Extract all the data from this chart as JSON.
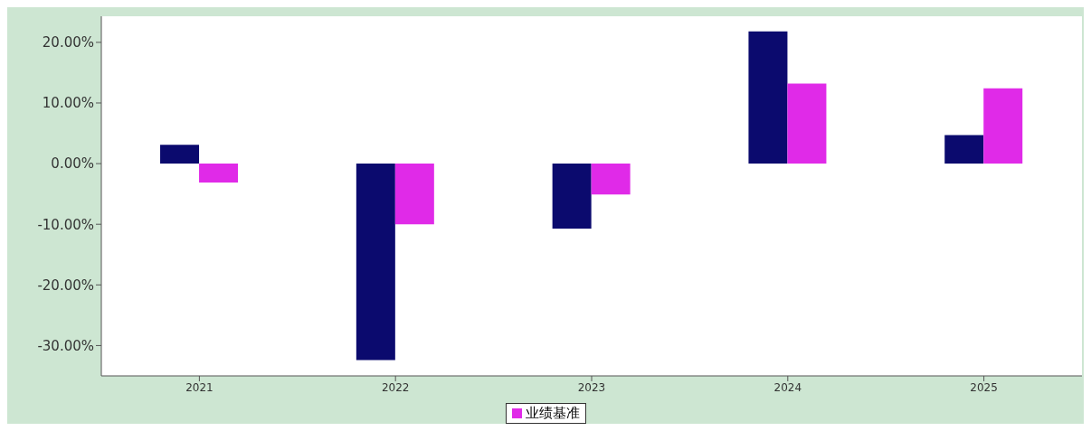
{
  "chart_data": {
    "type": "bar",
    "categories": [
      "2021",
      "2022",
      "2023",
      "2024",
      "2025"
    ],
    "series": [
      {
        "color": "#0b0a6e",
        "values": [
          3.1,
          -32.4,
          -10.7,
          21.8,
          4.7
        ]
      },
      {
        "name": "业绩基准",
        "color": "#e02ae8",
        "values": [
          -3.1,
          -10.0,
          -5.1,
          13.2,
          12.4
        ]
      }
    ],
    "ylim": [
      -35,
      24.3
    ],
    "yticks": [
      {
        "value": -30,
        "label": "-30.00%"
      },
      {
        "value": -20,
        "label": "-20.00%"
      },
      {
        "value": -10,
        "label": "-10.00%"
      },
      {
        "value": 0,
        "label": "0.00%"
      },
      {
        "value": 10,
        "label": "10.00%"
      },
      {
        "value": 20,
        "label": "20.00%"
      }
    ],
    "grid": false,
    "legend": "bottom"
  }
}
